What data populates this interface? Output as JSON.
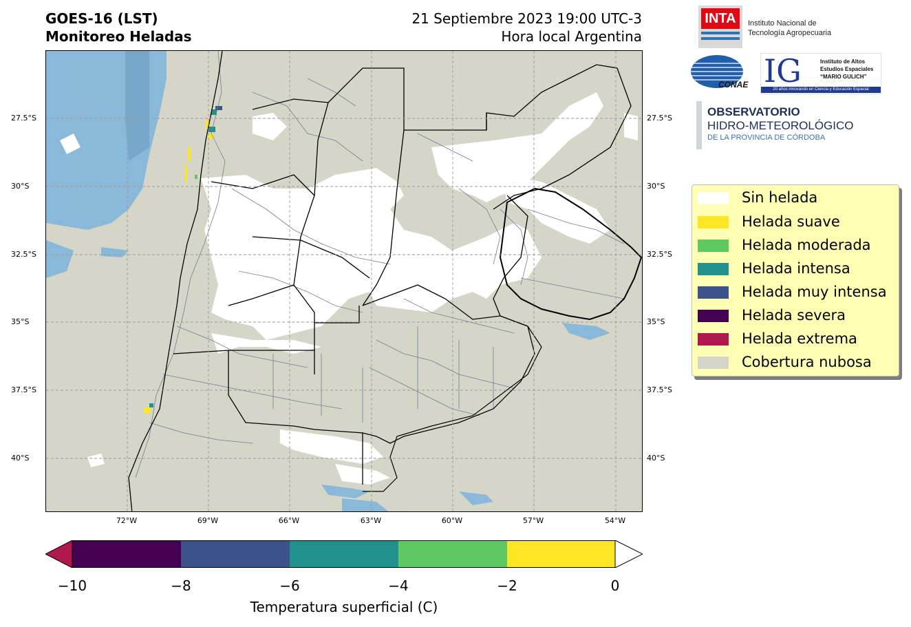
{
  "header": {
    "title_line1": "GOES-16 (LST)",
    "title_line2": "Monitoreo Heladas",
    "date_line": "21 Septiembre 2023 19:00 UTC-3",
    "local_time_line": "Hora local Argentina"
  },
  "map": {
    "latitude_labels": [
      "27.5°S",
      "30°S",
      "32.5°S",
      "35°S",
      "37.5°S",
      "40°S"
    ],
    "longitude_labels": [
      "72°W",
      "69°W",
      "66°W",
      "63°W",
      "60°W",
      "57°W",
      "54°W"
    ],
    "colors": {
      "cloud": "#d6d6c8",
      "clear": "#ffffff",
      "water": "#7fb2d6",
      "border": "#000000",
      "district": "#6f7f94"
    }
  },
  "legend": {
    "items": [
      {
        "label": "Sin helada",
        "color": "#ffffff"
      },
      {
        "label": "Helada suave",
        "color": "#fde725"
      },
      {
        "label": "Helada moderada",
        "color": "#5ec962"
      },
      {
        "label": "Helada intensa",
        "color": "#21918c"
      },
      {
        "label": "Helada muy intensa",
        "color": "#3b528b"
      },
      {
        "label": "Helada severa",
        "color": "#440154"
      },
      {
        "label": "Helada extrema",
        "color": "#b0174f"
      },
      {
        "label": "Cobertura nubosa",
        "color": "#d6d6c8"
      }
    ]
  },
  "colorbar": {
    "label": "Temperatura superficial (C)",
    "ticks": [
      "−10",
      "−8",
      "−6",
      "−4",
      "−2",
      "0"
    ],
    "segments": [
      "#440154",
      "#3b528b",
      "#21918c",
      "#5ec962",
      "#fde725"
    ],
    "under_color": "#b0174f",
    "over_color": "#ffffff"
  },
  "logos": {
    "inta": {
      "mark": "INTA",
      "line1": "Instituto Nacional de",
      "line2": "Tecnología Agropecuaria"
    },
    "conae": {
      "mark": "CONAE"
    },
    "ig": {
      "mark": "IG",
      "line1": "Instituto de Altos",
      "line2": "Estudios Espaciales",
      "line3": "“MARIO GULICH”",
      "tagline": "20 años innovando en Ciencia y Educación Espacial"
    },
    "observatorio": {
      "line1": "OBSERVATORIO",
      "line2": "HIDRO-METEOROLÓGICO",
      "line3": "DE LA PROVINCIA DE CÓRDOBA"
    }
  }
}
